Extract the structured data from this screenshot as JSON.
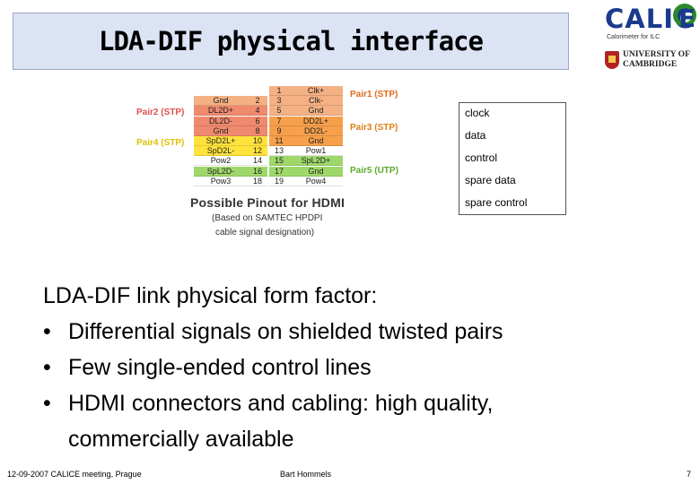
{
  "title": "LDA-DIF physical interface",
  "logos": {
    "calice_word": "CALIC",
    "calice_ring_letter": "E",
    "calice_sub": "Calorimeter for ILC",
    "cambridge_line1": "UNIVERSITY OF",
    "cambridge_line2": "CAMBRIDGE"
  },
  "pinout": {
    "title": "Possible Pinout for HDMI",
    "subtitle1": "(Based on SAMTEC HPDPI",
    "subtitle2": "cable signal designation)",
    "pair_labels": {
      "pair1": "Pair1 (STP)",
      "pair2": "Pair2 (STP)",
      "pair3": "Pair3 (STP)",
      "pair4": "Pair4 (STP)",
      "pair5": "Pair5 (UTP)"
    },
    "rows": [
      {
        "left_name": "",
        "left_num": "",
        "right_num": "1",
        "right_name": "Clk+",
        "left_color": "#ffffff",
        "right_color": "#f4b183"
      },
      {
        "left_name": "Gnd",
        "left_num": "2",
        "right_num": "3",
        "right_name": "Clk-",
        "left_color": "#f4b183",
        "right_color": "#f4b183"
      },
      {
        "left_name": "DL2D+",
        "left_num": "4",
        "right_num": "5",
        "right_name": "Gnd",
        "left_color": "#f08a6e",
        "right_color": "#f4b183"
      },
      {
        "left_name": "DL2D-",
        "left_num": "6",
        "right_num": "7",
        "right_name": "DD2L+",
        "left_color": "#f08a6e",
        "right_color": "#f7a04b"
      },
      {
        "left_name": "Gnd",
        "left_num": "8",
        "right_num": "9",
        "right_name": "DD2L-",
        "left_color": "#f08a6e",
        "right_color": "#f7a04b"
      },
      {
        "left_name": "SpD2L+",
        "left_num": "10",
        "right_num": "11",
        "right_name": "Gnd",
        "left_color": "#ffe33b",
        "right_color": "#f7a04b"
      },
      {
        "left_name": "SpD2L-",
        "left_num": "12",
        "right_num": "13",
        "right_name": "Pow1",
        "left_color": "#ffe33b",
        "right_color": "#ffffff"
      },
      {
        "left_name": "Pow2",
        "left_num": "14",
        "right_num": "15",
        "right_name": "SpL2D+",
        "left_color": "#ffffff",
        "right_color": "#9fd86a"
      },
      {
        "left_name": "SpL2D-",
        "left_num": "16",
        "right_num": "17",
        "right_name": "Gnd",
        "left_color": "#9fd86a",
        "right_color": "#9fd86a"
      },
      {
        "left_name": "Pow3",
        "left_num": "18",
        "right_num": "19",
        "right_name": "Pow4",
        "left_color": "#ffffff",
        "right_color": "#ffffff"
      }
    ]
  },
  "legend": [
    "clock",
    "data",
    "control",
    "spare data",
    "spare control"
  ],
  "bullets": {
    "heading": "LDA-DIF link physical form factor:",
    "bullet_char": "•",
    "items": [
      "Differential signals on shielded twisted pairs",
      "Few single-ended control lines",
      "HDMI connectors and cabling: high quality,"
    ],
    "continuation": "commercially available"
  },
  "footer": {
    "left": "12-09-2007 CALICE meeting, Prague",
    "center": "Bart Hommels",
    "page": "7"
  }
}
